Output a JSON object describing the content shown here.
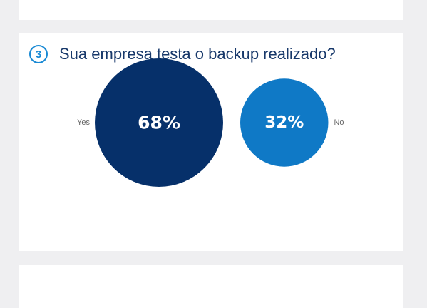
{
  "question": {
    "number": "3",
    "text": "Sua empresa testa o backup realizado?"
  },
  "colors": {
    "yes": "#06306a",
    "no": "#0f79c6",
    "accent": "#1a8ad4",
    "title": "#17386a"
  },
  "chart_data": {
    "type": "bubble",
    "categories": [
      "Yes",
      "No"
    ],
    "values": [
      68,
      32
    ],
    "value_labels": [
      "68%",
      "32%"
    ],
    "legend": "none"
  }
}
